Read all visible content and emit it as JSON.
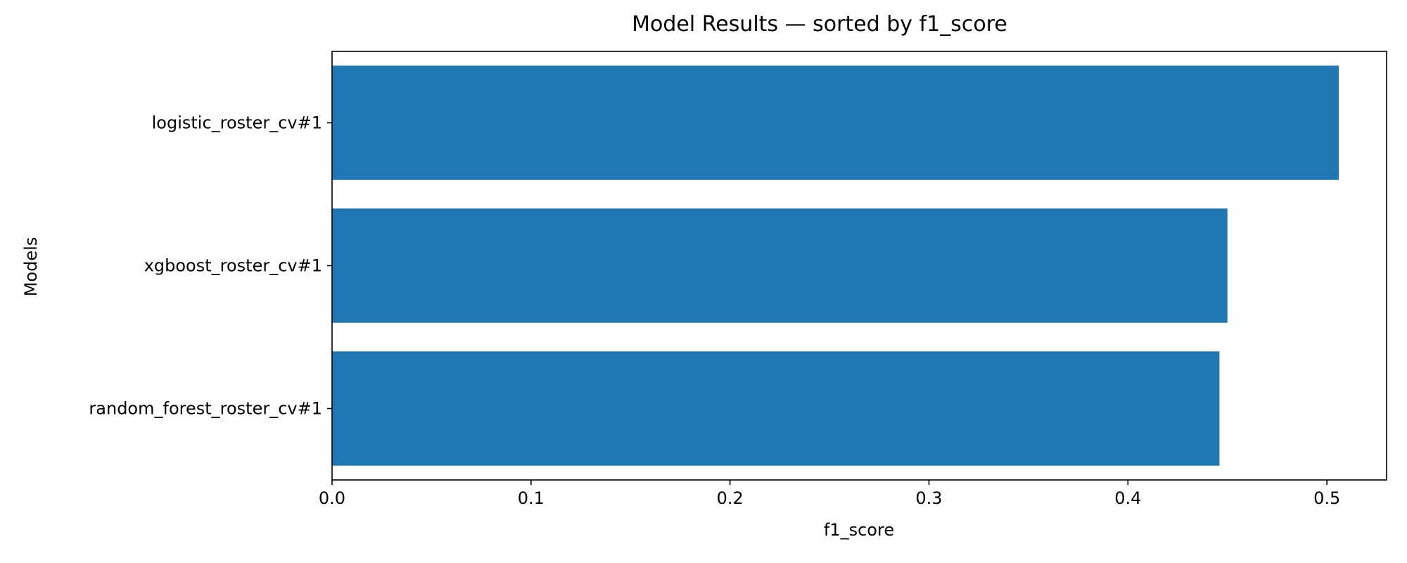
{
  "chart_data": {
    "type": "bar",
    "orientation": "horizontal",
    "title": "Model Results — sorted by f1_score",
    "xlabel": "f1_score",
    "ylabel": "Models",
    "categories": [
      "logistic_roster_cv#1",
      "xgboost_roster_cv#1",
      "random_forest_roster_cv#1"
    ],
    "values": [
      0.506,
      0.45,
      0.446
    ],
    "xlim": [
      0,
      0.53
    ],
    "xticks": [
      "0.0",
      "0.1",
      "0.2",
      "0.3",
      "0.4",
      "0.5"
    ],
    "grid": false,
    "legend": "none",
    "bar_color": "#1f77b4"
  }
}
